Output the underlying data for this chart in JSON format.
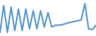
{
  "values": [
    10,
    85,
    10,
    80,
    15,
    75,
    15,
    75,
    20,
    70,
    20,
    70,
    25,
    65,
    25,
    30,
    30,
    32,
    35,
    38,
    40,
    42,
    45,
    90,
    20,
    18,
    30
  ],
  "line_color": "#5b9bd5",
  "bg_color": "#ffffff",
  "linewidth": 1.4
}
